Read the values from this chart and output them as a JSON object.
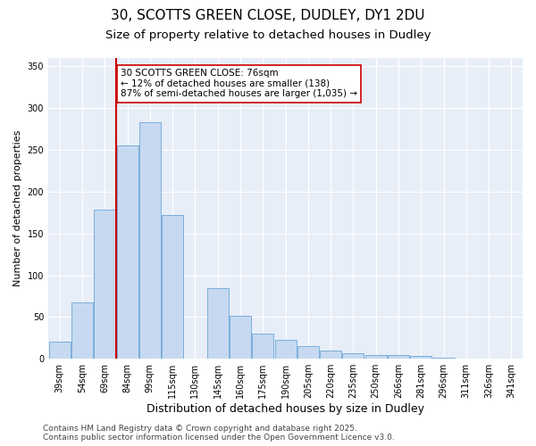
{
  "title1": "30, SCOTTS GREEN CLOSE, DUDLEY, DY1 2DU",
  "title2": "Size of property relative to detached houses in Dudley",
  "xlabel": "Distribution of detached houses by size in Dudley",
  "ylabel": "Number of detached properties",
  "categories": [
    "39sqm",
    "54sqm",
    "69sqm",
    "84sqm",
    "99sqm",
    "115sqm",
    "130sqm",
    "145sqm",
    "160sqm",
    "175sqm",
    "190sqm",
    "205sqm",
    "220sqm",
    "235sqm",
    "250sqm",
    "266sqm",
    "281sqm",
    "296sqm",
    "311sqm",
    "326sqm",
    "341sqm"
  ],
  "values": [
    20,
    68,
    178,
    255,
    283,
    172,
    0,
    85,
    52,
    30,
    23,
    15,
    10,
    7,
    5,
    5,
    3,
    1,
    0,
    0,
    0
  ],
  "bar_color": "#c6d9f0",
  "bar_edge_color": "#7aaedb",
  "vline_x": 2.5,
  "vline_color": "#cc0000",
  "annotation_text": "30 SCOTTS GREEN CLOSE: 76sqm\n← 12% of detached houses are smaller (138)\n87% of semi-detached houses are larger (1,035) →",
  "annotation_box_facecolor": "#ffffff",
  "annotation_box_edgecolor": "#cc0000",
  "ylim": [
    0,
    360
  ],
  "yticks": [
    0,
    50,
    100,
    150,
    200,
    250,
    300,
    350
  ],
  "fig_facecolor": "#ffffff",
  "ax_facecolor": "#e8eef8",
  "grid_color": "#ffffff",
  "title1_fontsize": 11,
  "title2_fontsize": 9.5,
  "xlabel_fontsize": 9,
  "ylabel_fontsize": 8,
  "tick_fontsize": 7,
  "annotation_fontsize": 7.5,
  "footer_fontsize": 6.5,
  "footer_text": "Contains HM Land Registry data © Crown copyright and database right 2025.\nContains public sector information licensed under the Open Government Licence v3.0."
}
